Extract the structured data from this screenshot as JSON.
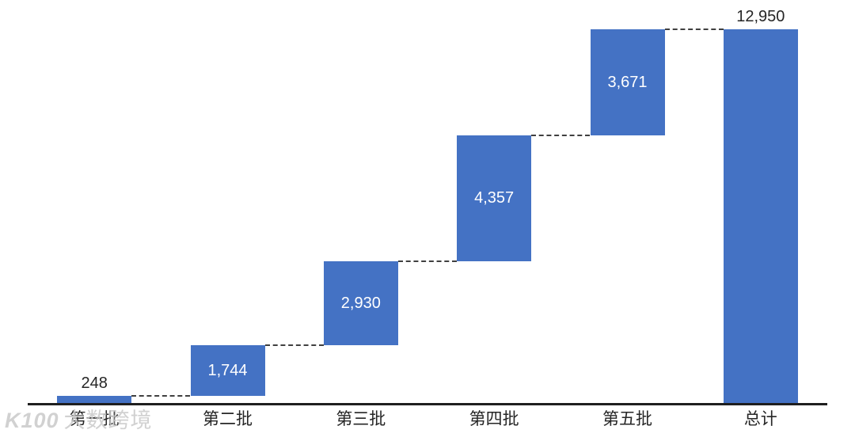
{
  "page": {
    "background": "#FFFFFF"
  },
  "watermark": {
    "logo": "K100",
    "text": "大数跨境"
  },
  "chart_data": {
    "type": "bar",
    "subtype": "waterfall",
    "title": "",
    "xlabel": "",
    "ylabel": "",
    "categories": [
      "第一批",
      "第二批",
      "第三批",
      "第四批",
      "第五批",
      "总计"
    ],
    "values": [
      248,
      1744,
      2930,
      4357,
      3671,
      12950
    ],
    "is_total": [
      false,
      false,
      false,
      false,
      false,
      true
    ],
    "cumulative": [
      248,
      1992,
      4922,
      9279,
      12950
    ],
    "data_labels": [
      "248",
      "1,744",
      "2,930",
      "4,357",
      "3,671",
      "12,950"
    ],
    "label_placement": [
      "outside-top",
      "inside-center",
      "inside-center",
      "inside-center",
      "inside-center",
      "outside-top"
    ],
    "bar_color": "#4472C4",
    "inside_label_color": "#FFFFFF",
    "outside_label_color": "#262626",
    "axis_line_color": "#1F1F1F",
    "connector_color": "#404040",
    "connector_style": "dashed",
    "grid": false,
    "legend": false,
    "ylim": [
      0,
      12950
    ]
  }
}
